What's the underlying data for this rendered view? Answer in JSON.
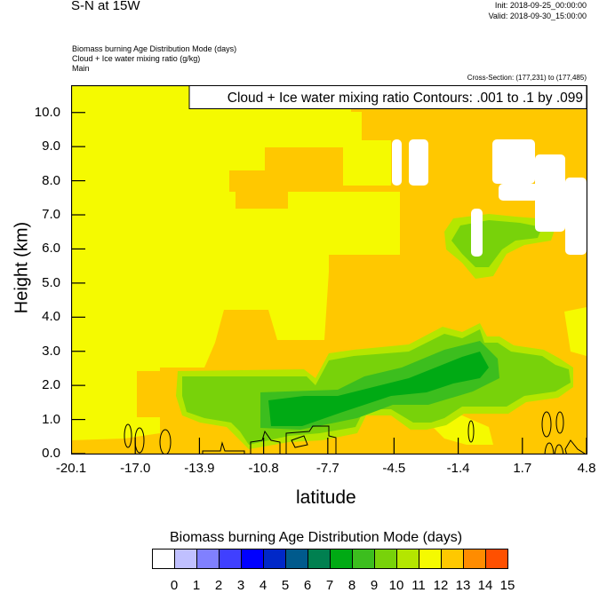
{
  "header": {
    "title": "S-N at 15W",
    "init": "Init: 2018-09-25_00:00:00",
    "valid": "Valid: 2018-09-30_15:00:00",
    "fields": [
      "Biomass burning Age Distribution Mode   (days)",
      "Cloud + Ice water mixing ratio   (g/kg)",
      "Main"
    ],
    "cross_section": "Cross-Section: (177,231) to (177,485)"
  },
  "chart_data": {
    "type": "heatmap",
    "subtype": "filled-contour cross-section with line contours",
    "xlabel": "latitude",
    "ylabel": "Height (km)",
    "xlim": [
      -20.1,
      4.8
    ],
    "ylim": [
      0.0,
      10.8
    ],
    "xticks": [
      "-20.1",
      "-17.0",
      "-13.9",
      "-10.8",
      "-7.7",
      "-4.5",
      "-1.4",
      "1.7",
      "4.8"
    ],
    "xtick_values": [
      -20.1,
      -17.0,
      -13.9,
      -10.8,
      -7.7,
      -4.5,
      -1.4,
      1.7,
      4.8
    ],
    "yticks": [
      "0.0",
      "1.0",
      "2.0",
      "3.0",
      "4.0",
      "5.0",
      "6.0",
      "7.0",
      "8.0",
      "9.0",
      "10.0"
    ],
    "ytick_values": [
      0,
      1,
      2,
      3,
      4,
      5,
      6,
      7,
      8,
      9,
      10
    ],
    "contour_annotation": "Cloud + Ice water mixing ratio Contours: .001 to .1 by .099",
    "colorbar": {
      "title": "Biomass burning Age Distribution Mode  (days)",
      "labels": [
        "0",
        "1",
        "2",
        "3",
        "4",
        "5",
        "6",
        "7",
        "8",
        "9",
        "10",
        "11",
        "12",
        "13",
        "14",
        "15"
      ],
      "colors": [
        "#ffffff",
        "#c0c0ff",
        "#8080ff",
        "#4040ff",
        "#0000ff",
        "#0028c8",
        "#005a8c",
        "#008050",
        "#00aa14",
        "#3cbe1e",
        "#78d20a",
        "#b4e600",
        "#f5fa00",
        "#ffc800",
        "#ff8c00",
        "#ff5000",
        "#ff0000"
      ]
    },
    "field_summary": {
      "background_level_days": "12-13",
      "upper_left_level_days": "11-12",
      "low_level_band_days": "7-11",
      "missing_patches": "white"
    }
  }
}
